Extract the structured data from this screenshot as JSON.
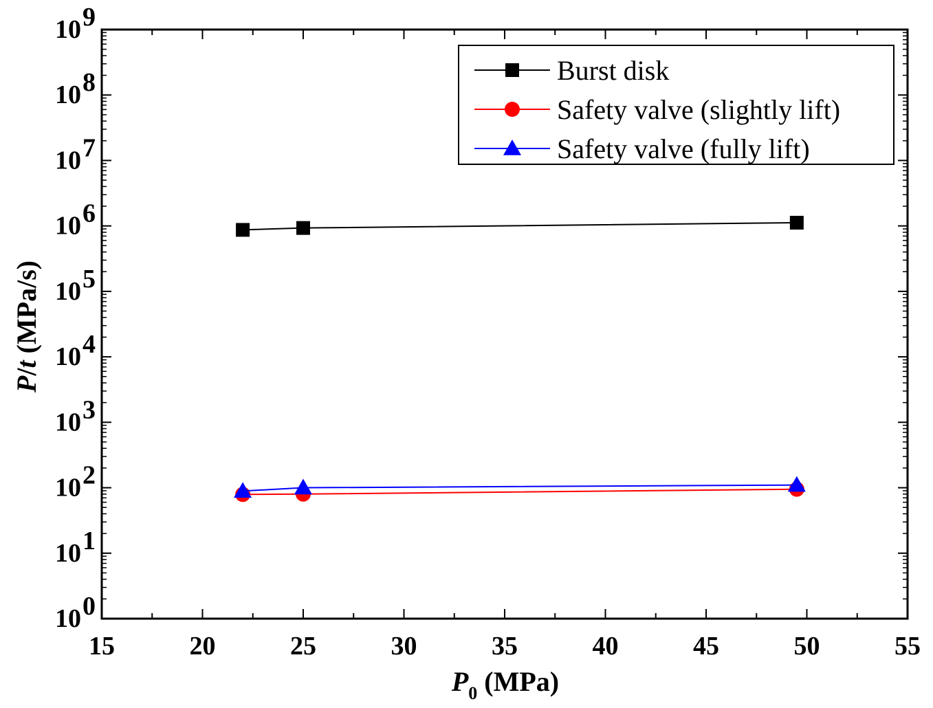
{
  "chart_data": {
    "type": "line",
    "title": "",
    "xlabel": {
      "symbol": "P",
      "subscript": "0",
      "unit": " (MPa)"
    },
    "ylabel": {
      "symbol": "P",
      "slash": "/",
      "symbol2": "t",
      "unit": " (MPa/s)"
    },
    "x_ticks": [
      15,
      20,
      25,
      30,
      35,
      40,
      45,
      50,
      55
    ],
    "xlim": [
      15,
      55
    ],
    "y_scale": "log",
    "ylim": [
      1,
      1000000000
    ],
    "y_tick_exponents": [
      "0",
      "1",
      "2",
      "3",
      "4",
      "5",
      "6",
      "7",
      "8",
      "9"
    ],
    "y_tick_base": "10",
    "grid": false,
    "legend_position": "top-right",
    "series": [
      {
        "name": "Burst disk",
        "color": "#000000",
        "marker": "square",
        "x": [
          22,
          25,
          49.5
        ],
        "y": [
          870000,
          930000,
          1120000
        ]
      },
      {
        "name": "Safety valve (slightly lift)",
        "color": "#ff0000",
        "marker": "circle",
        "x": [
          22,
          25,
          49.5
        ],
        "y": [
          79,
          80,
          95
        ]
      },
      {
        "name": "Safety valve (fully lift)",
        "color": "#0000ff",
        "marker": "triangle",
        "x": [
          22,
          25,
          49.5
        ],
        "y": [
          89,
          100,
          110
        ]
      }
    ]
  }
}
